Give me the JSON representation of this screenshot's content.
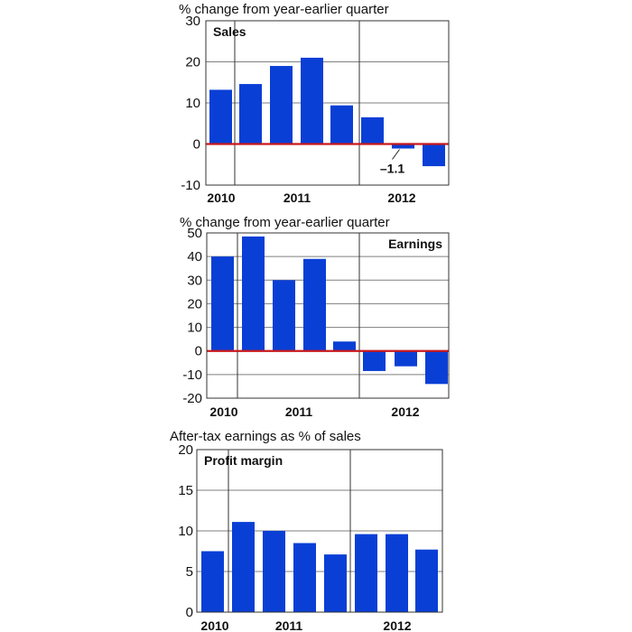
{
  "colors": {
    "bar": "#0a3fd6",
    "zero_line": "#c8191e",
    "grid": "#7f7f7f",
    "text": "#111111"
  },
  "chart_data": [
    {
      "type": "bar",
      "heading": "% change from year-earlier quarter",
      "title": "Sales",
      "title_position": "top-left",
      "ylim": [
        -10,
        30
      ],
      "yticks": [
        30,
        20,
        10,
        0,
        -10
      ],
      "ytick_labels": [
        "30",
        "20",
        "10",
        "0",
        "-10"
      ],
      "year_labels": [
        "2010",
        "2011",
        "2012"
      ],
      "values": [
        13.2,
        14.6,
        19.0,
        21.0,
        9.4,
        6.5,
        -1.1,
        -5.4
      ],
      "annotation": {
        "text": "–1.1",
        "bar_index": 6
      }
    },
    {
      "type": "bar",
      "heading": "% change from year-earlier quarter",
      "title": "Earnings",
      "title_position": "top-right",
      "ylim": [
        -20,
        50
      ],
      "yticks": [
        50,
        40,
        30,
        20,
        10,
        0,
        -10,
        -20
      ],
      "ytick_labels": [
        "50",
        "40",
        "30",
        "20",
        "10",
        "0",
        "-10",
        "-20"
      ],
      "year_labels": [
        "2010",
        "2011",
        "2012"
      ],
      "values": [
        40.0,
        48.5,
        30.0,
        39.0,
        4.0,
        -8.5,
        -6.5,
        -14.0
      ]
    },
    {
      "type": "bar",
      "heading": "After-tax earnings as % of sales",
      "title": "Profit margin",
      "title_position": "top-left",
      "ylim": [
        0,
        20
      ],
      "yticks": [
        20,
        15,
        10,
        5,
        0
      ],
      "ytick_labels": [
        "20",
        "15",
        "10",
        "5",
        "0"
      ],
      "year_labels": [
        "2010",
        "2011",
        "2012"
      ],
      "values": [
        7.5,
        11.1,
        10.0,
        8.5,
        7.1,
        9.6,
        9.6,
        7.7
      ]
    }
  ]
}
